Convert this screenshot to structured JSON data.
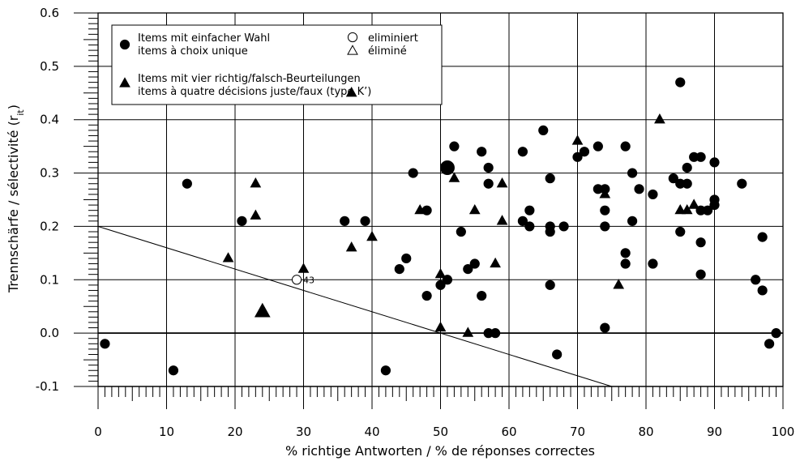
{
  "chart_data": {
    "type": "scatter",
    "xlabel": "% richtige Antworten / % de réponses correctes",
    "ylabel": "Trennschärfe / sélectivité (r",
    "ylabel_sub": "it",
    "ylabel_close": ")",
    "xlim": [
      0,
      100
    ],
    "ylim": [
      -0.1,
      0.6
    ],
    "x_ticks": [
      "0",
      "10",
      "20",
      "30",
      "40",
      "50",
      "60",
      "70",
      "80",
      "90",
      "100"
    ],
    "y_ticks": [
      "-0.1",
      "0.0",
      "0.1",
      "0.2",
      "0.3",
      "0.4",
      "0.5",
      "0.6"
    ],
    "grid": true,
    "legend": {
      "position": "top-left",
      "entries": [
        {
          "marker": "circle",
          "line1": "Items mit einfacher Wahl",
          "line2": "items à choix unique"
        },
        {
          "marker": "triangle",
          "line1": "Items mit vier richtig/falsch-Beurteilungen",
          "line2": "items à quatre décisions juste/faux (type K’)"
        },
        {
          "marker": "open-circle",
          "line1": "eliminiert"
        },
        {
          "marker": "open-triangle",
          "line1": "éliminé"
        }
      ]
    },
    "reference_line": {
      "from": [
        0,
        0.2
      ],
      "to": [
        75,
        -0.1
      ]
    },
    "annotations": [
      {
        "text": "43",
        "x": 29,
        "y": 0.1
      }
    ],
    "series": [
      {
        "name": "Items mit einfacher Wahl / items à choix unique",
        "marker": "circle",
        "points": [
          [
            1,
            -0.02
          ],
          [
            11,
            -0.07
          ],
          [
            13,
            0.28
          ],
          [
            21,
            0.21
          ],
          [
            36,
            0.21
          ],
          [
            39,
            0.21
          ],
          [
            42,
            -0.07
          ],
          [
            44,
            0.12
          ],
          [
            45,
            0.14
          ],
          [
            46,
            0.3
          ],
          [
            48,
            0.23
          ],
          [
            48,
            0.07
          ],
          [
            50,
            0.09
          ],
          [
            51,
            0.1
          ],
          [
            52,
            0.35
          ],
          [
            53,
            0.19
          ],
          [
            54,
            0.12
          ],
          [
            55,
            0.13
          ],
          [
            56,
            0.34
          ],
          [
            56,
            0.07
          ],
          [
            57,
            0.31
          ],
          [
            57,
            0.28
          ],
          [
            57,
            0.0
          ],
          [
            58,
            0.0
          ],
          [
            62,
            0.34
          ],
          [
            62,
            0.21
          ],
          [
            63,
            0.23
          ],
          [
            63,
            0.2
          ],
          [
            65,
            0.38
          ],
          [
            66,
            0.29
          ],
          [
            66,
            0.2
          ],
          [
            66,
            0.19
          ],
          [
            66,
            0.09
          ],
          [
            67,
            -0.04
          ],
          [
            68,
            0.2
          ],
          [
            70,
            0.33
          ],
          [
            71,
            0.34
          ],
          [
            73,
            0.35
          ],
          [
            73,
            0.27
          ],
          [
            74,
            0.27
          ],
          [
            74,
            0.23
          ],
          [
            74,
            0.2
          ],
          [
            74,
            0.01
          ],
          [
            77,
            0.35
          ],
          [
            77,
            0.15
          ],
          [
            77,
            0.13
          ],
          [
            78,
            0.3
          ],
          [
            78,
            0.21
          ],
          [
            79,
            0.27
          ],
          [
            81,
            0.26
          ],
          [
            81,
            0.13
          ],
          [
            84,
            0.29
          ],
          [
            85,
            0.47
          ],
          [
            85,
            0.28
          ],
          [
            85,
            0.19
          ],
          [
            86,
            0.31
          ],
          [
            86,
            0.28
          ],
          [
            87,
            0.33
          ],
          [
            88,
            0.33
          ],
          [
            88,
            0.23
          ],
          [
            88,
            0.17
          ],
          [
            88,
            0.11
          ],
          [
            89,
            0.23
          ],
          [
            90,
            0.32
          ],
          [
            90,
            0.25
          ],
          [
            90,
            0.24
          ],
          [
            94,
            0.28
          ],
          [
            96,
            0.1
          ],
          [
            97,
            0.18
          ],
          [
            97,
            0.08
          ],
          [
            98,
            -0.02
          ],
          [
            99,
            0.0
          ]
        ],
        "large_points": [
          [
            51,
            0.31
          ]
        ]
      },
      {
        "name": "Items mit vier richtig/falsch-Beurteilungen / items à quatre décisions juste/faux (type K’)",
        "marker": "triangle",
        "points": [
          [
            19,
            0.14
          ],
          [
            23,
            0.28
          ],
          [
            23,
            0.22
          ],
          [
            30,
            0.12
          ],
          [
            37,
            0.45
          ],
          [
            37,
            0.16
          ],
          [
            40,
            0.18
          ],
          [
            47,
            0.23
          ],
          [
            50,
            0.11
          ],
          [
            50,
            0.01
          ],
          [
            52,
            0.29
          ],
          [
            54,
            0.0
          ],
          [
            55,
            0.23
          ],
          [
            58,
            0.13
          ],
          [
            59,
            0.28
          ],
          [
            59,
            0.21
          ],
          [
            70,
            0.36
          ],
          [
            74,
            0.26
          ],
          [
            76,
            0.09
          ],
          [
            82,
            0.4
          ],
          [
            85,
            0.23
          ],
          [
            86,
            0.23
          ],
          [
            87,
            0.24
          ]
        ],
        "large_points": [
          [
            24,
            0.04
          ]
        ]
      },
      {
        "name": "eliminiert / éliminé",
        "marker": "open-circle",
        "points": [
          [
            29,
            0.1
          ]
        ]
      }
    ]
  }
}
